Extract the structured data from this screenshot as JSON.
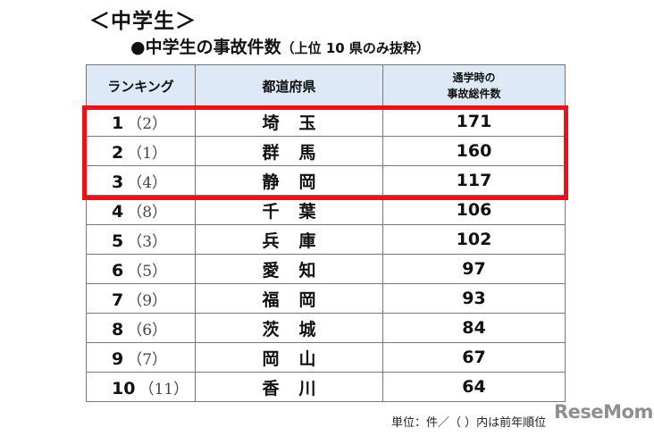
{
  "section_title": "＜中学生＞",
  "table_title": "●中学生の事故件数",
  "table_subtitle": "（上位 10 県のみ抜粋）",
  "columns": {
    "rank": "ランキング",
    "prefecture": "都道府県",
    "total_line1": "通学時の",
    "total_line2": "事故総件数"
  },
  "rows": [
    {
      "rank": "1",
      "prev": "（2）",
      "prefecture": "埼玉",
      "count": "171"
    },
    {
      "rank": "2",
      "prev": "（1）",
      "prefecture": "群馬",
      "count": "160"
    },
    {
      "rank": "3",
      "prev": "（4）",
      "prefecture": "静岡",
      "count": "117"
    },
    {
      "rank": "4",
      "prev": "（8）",
      "prefecture": "千葉",
      "count": "106"
    },
    {
      "rank": "5",
      "prev": "（3）",
      "prefecture": "兵庫",
      "count": "102"
    },
    {
      "rank": "6",
      "prev": "（5）",
      "prefecture": "愛知",
      "count": "97"
    },
    {
      "rank": "7",
      "prev": "（9）",
      "prefecture": "福岡",
      "count": "93"
    },
    {
      "rank": "8",
      "prev": "（6）",
      "prefecture": "茨城",
      "count": "84"
    },
    {
      "rank": "9",
      "prev": "（7）",
      "prefecture": "岡山",
      "count": "67"
    },
    {
      "rank": "10",
      "prev": "（11）",
      "prefecture": "香川",
      "count": "64"
    }
  ],
  "footnote": "単位：件／（ ）内は前年順位",
  "watermark": "ReseMom",
  "colors": {
    "header_bg": "#dde9f6",
    "highlight": "#e8141c"
  }
}
